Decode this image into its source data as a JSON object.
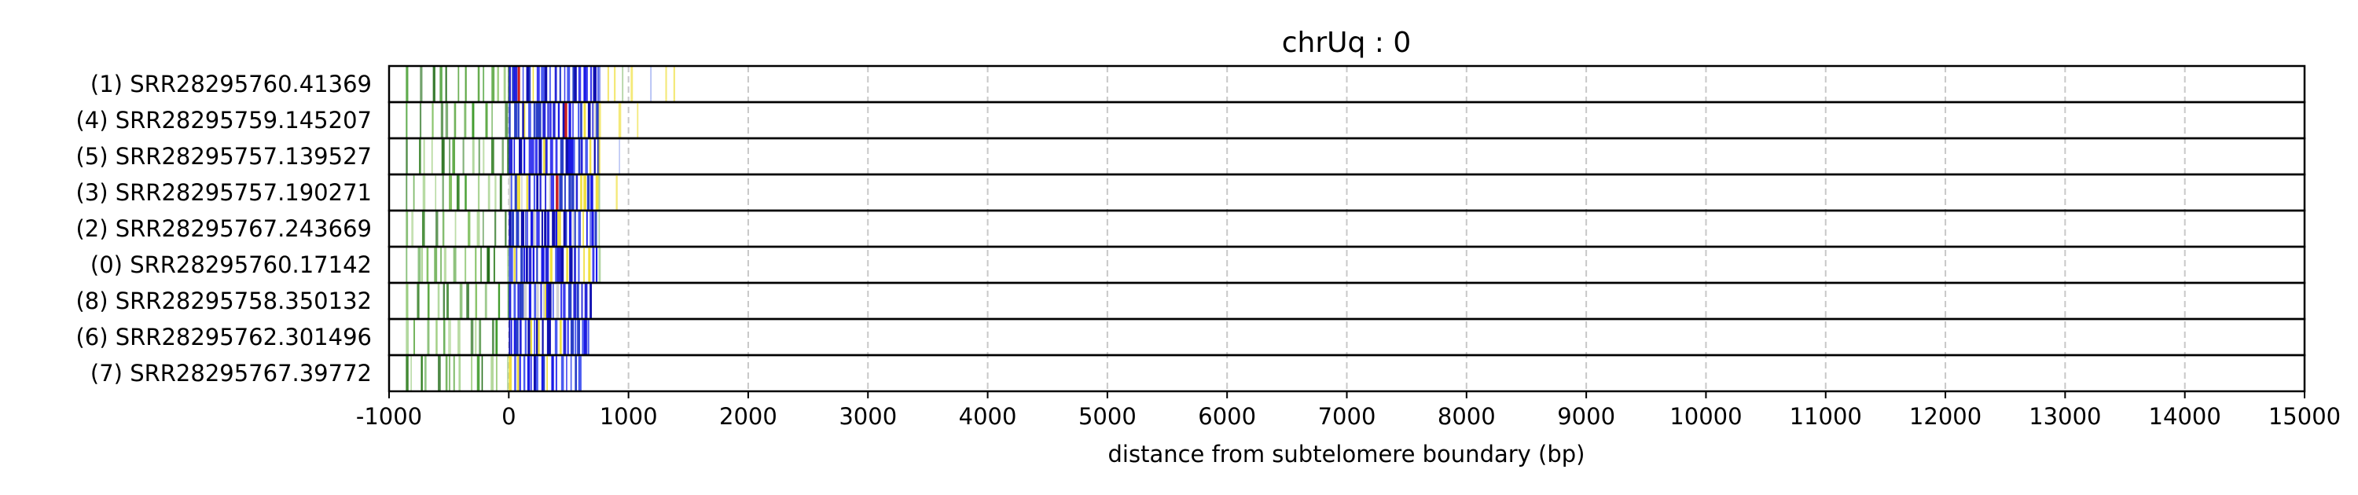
{
  "chart_data": {
    "type": "heatmap",
    "title": "chrUq : 0",
    "xlabel": "distance from subtelomere boundary (bp)",
    "ylabel": "",
    "xlim": [
      -1000,
      15000
    ],
    "x_ticks": [
      -1000,
      0,
      1000,
      2000,
      3000,
      4000,
      5000,
      6000,
      7000,
      8000,
      9000,
      10000,
      11000,
      12000,
      13000,
      14000,
      15000
    ],
    "x_tick_labels": [
      "-1000",
      "0",
      "1000",
      "2000",
      "3000",
      "4000",
      "5000",
      "6000",
      "7000",
      "8000",
      "9000",
      "10000",
      "11000",
      "12000",
      "13000",
      "14000",
      "15000"
    ],
    "grid": {
      "x": true,
      "style": "dashed"
    },
    "rows": [
      {
        "label": "(1) SRR28295760.41369",
        "read_end": 1420
      },
      {
        "label": "(4) SRR28295759.145207",
        "read_end": 1180
      },
      {
        "label": "(5) SRR28295757.139527",
        "read_end": 1000
      },
      {
        "label": "(3) SRR28295757.190271",
        "read_end": 960
      },
      {
        "label": "(2) SRR28295767.243669",
        "read_end": 900
      },
      {
        "label": "(0) SRR28295760.17142",
        "read_end": 880
      },
      {
        "label": "(8) SRR28295758.350132",
        "read_end": 680
      },
      {
        "label": "(6) SRR28295762.301496",
        "read_end": 690
      },
      {
        "label": "(7) SRR28295767.39772",
        "read_end": 590
      }
    ],
    "regions": [
      {
        "name": "subtelomere",
        "from": -1000,
        "to": 0,
        "color": "#2e7d1f"
      },
      {
        "name": "telomere repeat",
        "from": 0,
        "to": 750,
        "color": "#1a1ae6"
      },
      {
        "name": "other",
        "color": "#f0e040"
      },
      {
        "name": "mismatch",
        "color": "#cc2020"
      }
    ]
  }
}
